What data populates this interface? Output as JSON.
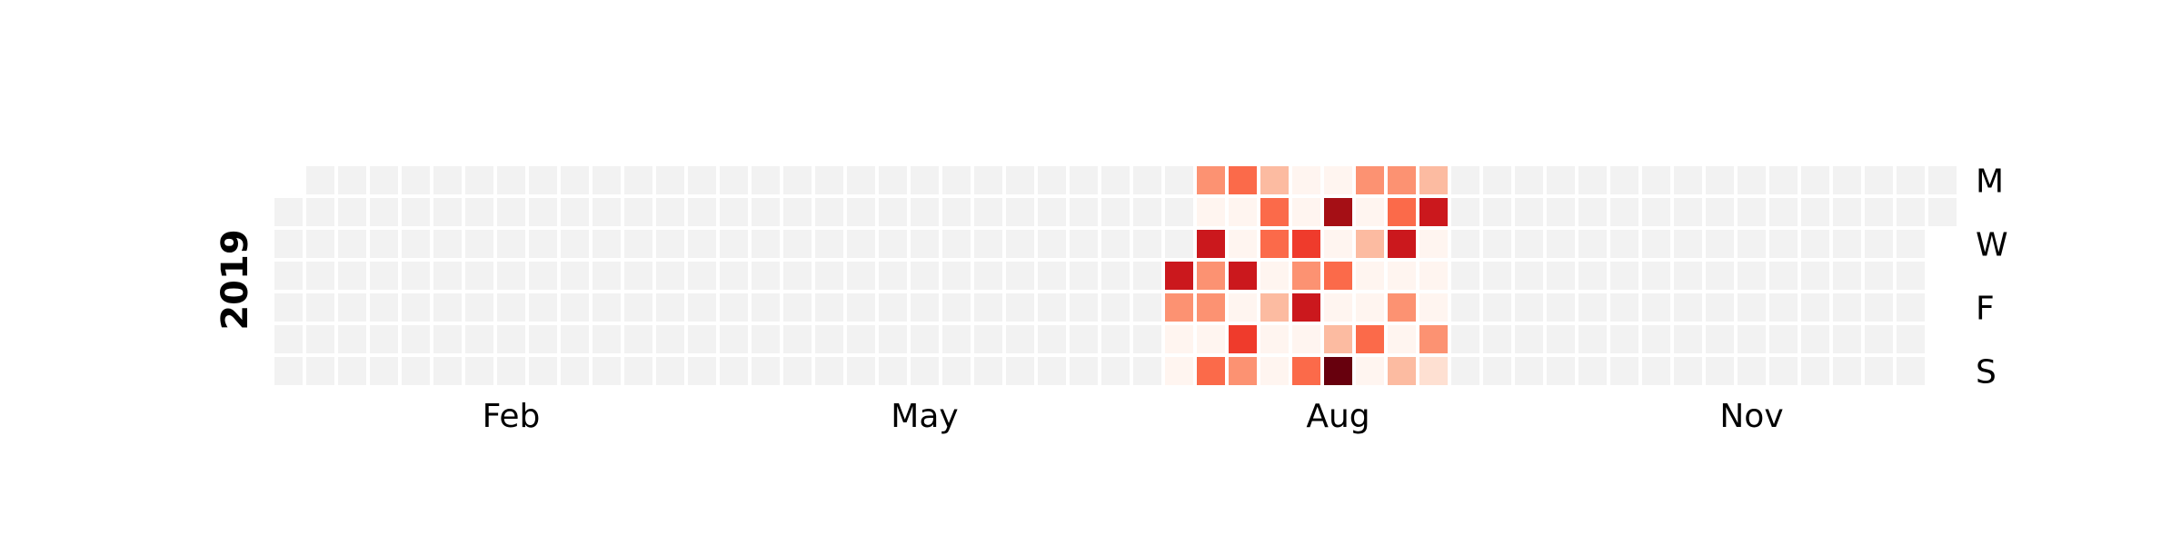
{
  "chart_data": {
    "type": "heatmap",
    "subtype": "calendar",
    "year": "2019",
    "month_labels": [
      {
        "label": "Feb",
        "week": 7
      },
      {
        "label": "May",
        "week": 20
      },
      {
        "label": "Aug",
        "week": 33
      },
      {
        "label": "Nov",
        "week": 46
      }
    ],
    "weekday_labels": [
      {
        "label": "M",
        "weekday": 0
      },
      {
        "label": "W",
        "weekday": 2
      },
      {
        "label": "F",
        "weekday": 4
      },
      {
        "label": "S",
        "weekday": 6
      }
    ],
    "first_weekday": 1,
    "days_in_year": 365,
    "empty_color": "#f2f2f2",
    "colorscale": [
      "#fff5f0",
      "#fee0d2",
      "#fcbba1",
      "#fc9272",
      "#fb6a4a",
      "#ef3b2c",
      "#cb181d",
      "#a50f15",
      "#67000d"
    ],
    "value_range": [
      0,
      8
    ],
    "values": [
      {
        "week": 28,
        "weekday": 5,
        "value": 0
      },
      {
        "week": 28,
        "weekday": 6,
        "value": 0
      },
      {
        "week": 29,
        "weekday": 0,
        "value": 3
      },
      {
        "week": 29,
        "weekday": 1,
        "value": 0
      },
      {
        "week": 29,
        "weekday": 2,
        "value": 6
      },
      {
        "week": 29,
        "weekday": 3,
        "value": 3
      },
      {
        "week": 29,
        "weekday": 4,
        "value": 3
      },
      {
        "week": 29,
        "weekday": 5,
        "value": 0
      },
      {
        "week": 29,
        "weekday": 6,
        "value": 4
      },
      {
        "week": 28,
        "weekday": 3,
        "value": 6
      },
      {
        "week": 28,
        "weekday": 4,
        "value": 3
      },
      {
        "week": 30,
        "weekday": 0,
        "value": 4
      },
      {
        "week": 30,
        "weekday": 1,
        "value": 0
      },
      {
        "week": 30,
        "weekday": 2,
        "value": 0
      },
      {
        "week": 30,
        "weekday": 3,
        "value": 6
      },
      {
        "week": 30,
        "weekday": 4,
        "value": 0
      },
      {
        "week": 30,
        "weekday": 5,
        "value": 5
      },
      {
        "week": 30,
        "weekday": 6,
        "value": 3
      },
      {
        "week": 31,
        "weekday": 0,
        "value": 2
      },
      {
        "week": 31,
        "weekday": 1,
        "value": 4
      },
      {
        "week": 31,
        "weekday": 2,
        "value": 4
      },
      {
        "week": 31,
        "weekday": 3,
        "value": 0
      },
      {
        "week": 31,
        "weekday": 4,
        "value": 2
      },
      {
        "week": 31,
        "weekday": 5,
        "value": 0
      },
      {
        "week": 31,
        "weekday": 6,
        "value": 0
      },
      {
        "week": 32,
        "weekday": 0,
        "value": 0
      },
      {
        "week": 32,
        "weekday": 1,
        "value": 0
      },
      {
        "week": 32,
        "weekday": 2,
        "value": 5
      },
      {
        "week": 32,
        "weekday": 3,
        "value": 3
      },
      {
        "week": 32,
        "weekday": 4,
        "value": 6
      },
      {
        "week": 32,
        "weekday": 5,
        "value": 0
      },
      {
        "week": 32,
        "weekday": 6,
        "value": 4
      },
      {
        "week": 33,
        "weekday": 0,
        "value": 0
      },
      {
        "week": 33,
        "weekday": 1,
        "value": 7
      },
      {
        "week": 33,
        "weekday": 2,
        "value": 0
      },
      {
        "week": 33,
        "weekday": 3,
        "value": 4
      },
      {
        "week": 33,
        "weekday": 4,
        "value": 0
      },
      {
        "week": 33,
        "weekday": 5,
        "value": 2
      },
      {
        "week": 33,
        "weekday": 6,
        "value": 8
      },
      {
        "week": 34,
        "weekday": 0,
        "value": 3
      },
      {
        "week": 34,
        "weekday": 1,
        "value": 0
      },
      {
        "week": 34,
        "weekday": 2,
        "value": 2
      },
      {
        "week": 34,
        "weekday": 3,
        "value": 0
      },
      {
        "week": 34,
        "weekday": 4,
        "value": 0
      },
      {
        "week": 34,
        "weekday": 5,
        "value": 4
      },
      {
        "week": 34,
        "weekday": 6,
        "value": 0
      },
      {
        "week": 35,
        "weekday": 0,
        "value": 3
      },
      {
        "week": 35,
        "weekday": 1,
        "value": 4
      },
      {
        "week": 35,
        "weekday": 2,
        "value": 6
      },
      {
        "week": 35,
        "weekday": 3,
        "value": 0
      },
      {
        "week": 35,
        "weekday": 4,
        "value": 3
      },
      {
        "week": 35,
        "weekday": 5,
        "value": 0
      },
      {
        "week": 35,
        "weekday": 6,
        "value": 2
      },
      {
        "week": 36,
        "weekday": 0,
        "value": 2
      },
      {
        "week": 36,
        "weekday": 1,
        "value": 6
      },
      {
        "week": 36,
        "weekday": 2,
        "value": 0
      },
      {
        "week": 36,
        "weekday": 3,
        "value": 0
      },
      {
        "week": 36,
        "weekday": 4,
        "value": 0
      },
      {
        "week": 36,
        "weekday": 5,
        "value": 3
      },
      {
        "week": 36,
        "weekday": 6,
        "value": 1
      }
    ]
  }
}
